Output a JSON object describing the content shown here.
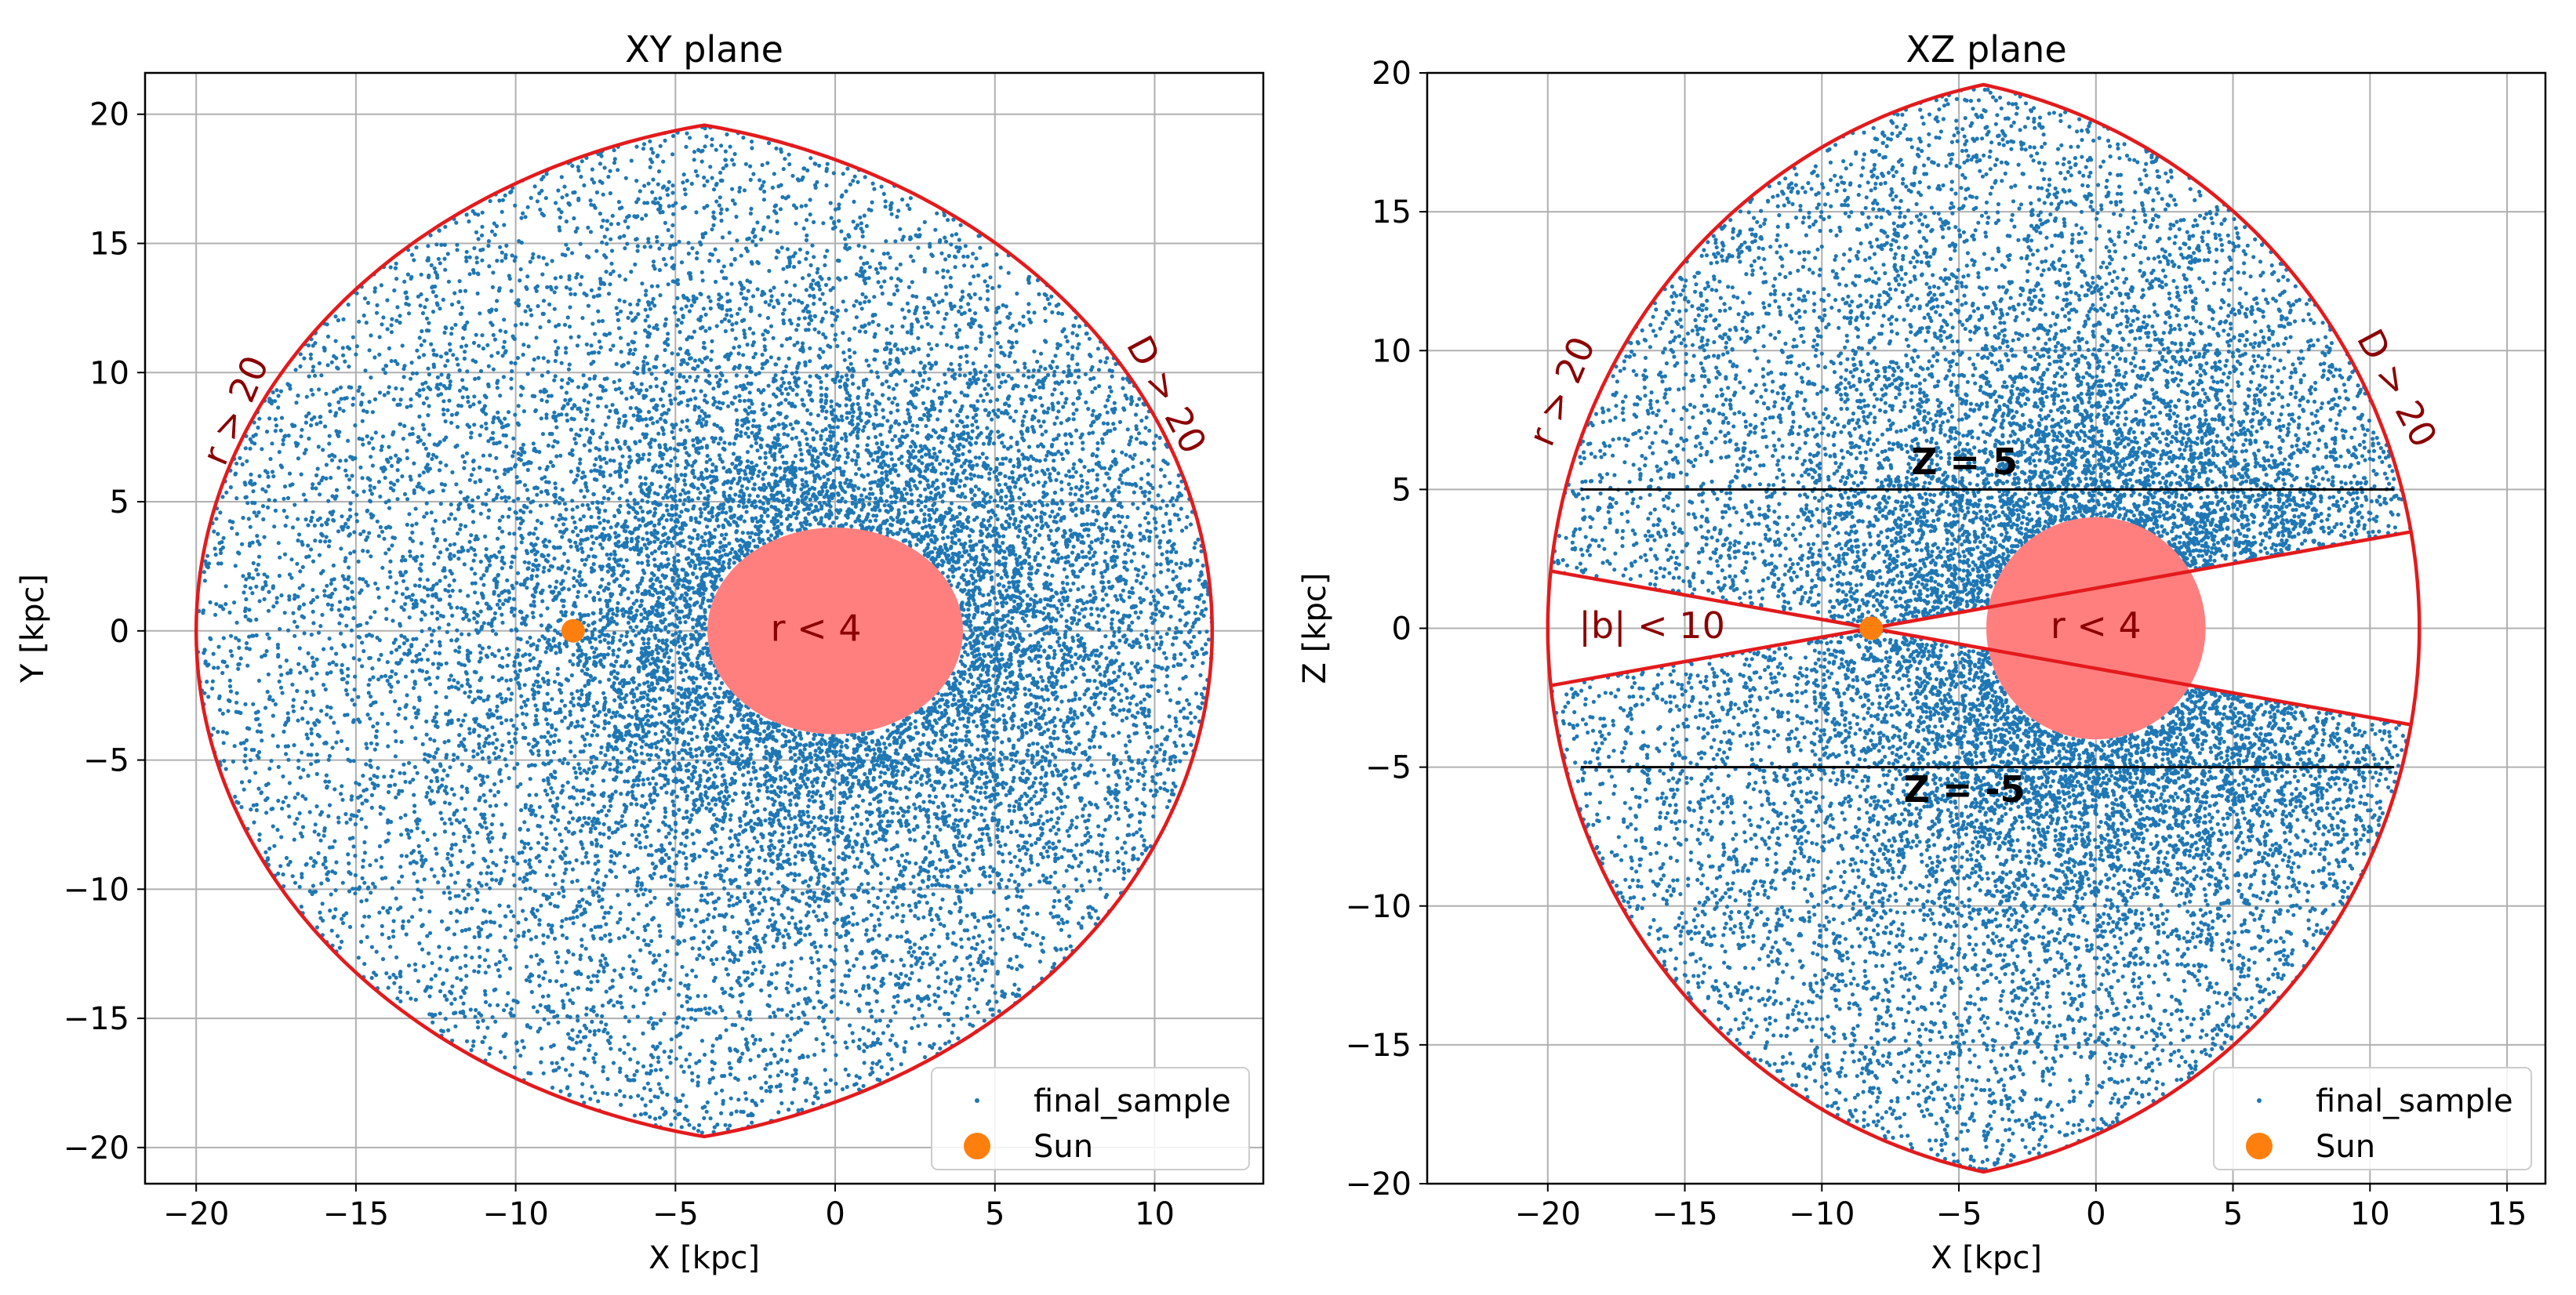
{
  "chart_data": [
    {
      "type": "scatter",
      "title": "XY plane",
      "xlabel": "X [kpc]",
      "ylabel": "Y [kpc]",
      "xlim": [
        -21.6,
        13.4
      ],
      "ylim": [
        -21.4,
        21.6
      ],
      "xticks": [
        -20,
        -15,
        -10,
        -5,
        0,
        5,
        10
      ],
      "yticks": [
        -20,
        -15,
        -10,
        -5,
        0,
        5,
        10,
        15,
        20
      ],
      "grid": true,
      "legend_position": "lower right",
      "series": [
        {
          "name": "final_sample",
          "kind": "scatter",
          "color": "#1f77b4",
          "approx_count": 30000,
          "description_region": "stars with r > 4, r < 20, D < 20"
        },
        {
          "name": "Sun",
          "kind": "point",
          "color": "#ff7f0e",
          "x": -8.2,
          "y": 0
        }
      ],
      "boundary": {
        "color": "#e41a1c",
        "sun_x": -8.2,
        "D_max": 20,
        "r_max": 20
      },
      "inner_region": {
        "radius": 4,
        "color": "#ff7f7f"
      },
      "annotations": [
        {
          "text": "r < 4",
          "x": -0.6,
          "y": 0
        },
        {
          "text": "r > 20",
          "x": -18.7,
          "y": 8.5,
          "rotation": -67
        },
        {
          "text": "D > 20",
          "x": 10.3,
          "y": 9.1,
          "rotation": 62
        }
      ]
    },
    {
      "type": "scatter",
      "title": "XZ plane",
      "xlabel": "X [kpc]",
      "ylabel": "Z [kpc]",
      "xlim": [
        -24.4,
        16.4
      ],
      "ylim": [
        -20,
        20
      ],
      "xticks": [
        -20,
        -15,
        -10,
        -5,
        0,
        5,
        10,
        15
      ],
      "yticks": [
        -20,
        -15,
        -10,
        -5,
        0,
        5,
        10,
        15,
        20
      ],
      "grid": true,
      "legend_position": "lower right",
      "series": [
        {
          "name": "final_sample",
          "kind": "scatter",
          "color": "#1f77b4",
          "approx_count": 30000,
          "description_region": "stars with r > 4, r < 20, D < 20, |b| > 10"
        },
        {
          "name": "Sun",
          "kind": "point",
          "color": "#ff7f0e",
          "x": -8.2,
          "y": 0
        }
      ],
      "boundary": {
        "color": "#e41a1c",
        "sun_x": -8.2,
        "D_max": 20,
        "r_max": 20,
        "b_min_deg": 10
      },
      "inner_region": {
        "radius": 4,
        "color": "#ff7f7f"
      },
      "hlines": [
        {
          "y": 5,
          "label": "Z = 5"
        },
        {
          "y": -5,
          "label": "Z = -5"
        }
      ],
      "annotations": [
        {
          "text": "r < 4",
          "x": 0,
          "y": 0
        },
        {
          "text": "|b| < 10",
          "x": -16.2,
          "y": 0
        },
        {
          "text": "r > 20",
          "x": -19.4,
          "y": 8.5,
          "rotation": -67
        },
        {
          "text": "D > 20",
          "x": 10.9,
          "y": 8.6,
          "rotation": 62
        },
        {
          "text": "Z = 5",
          "x": -4.8,
          "y": 5.9
        },
        {
          "text": "Z = -5",
          "x": -4.8,
          "y": -5.9
        }
      ]
    }
  ]
}
